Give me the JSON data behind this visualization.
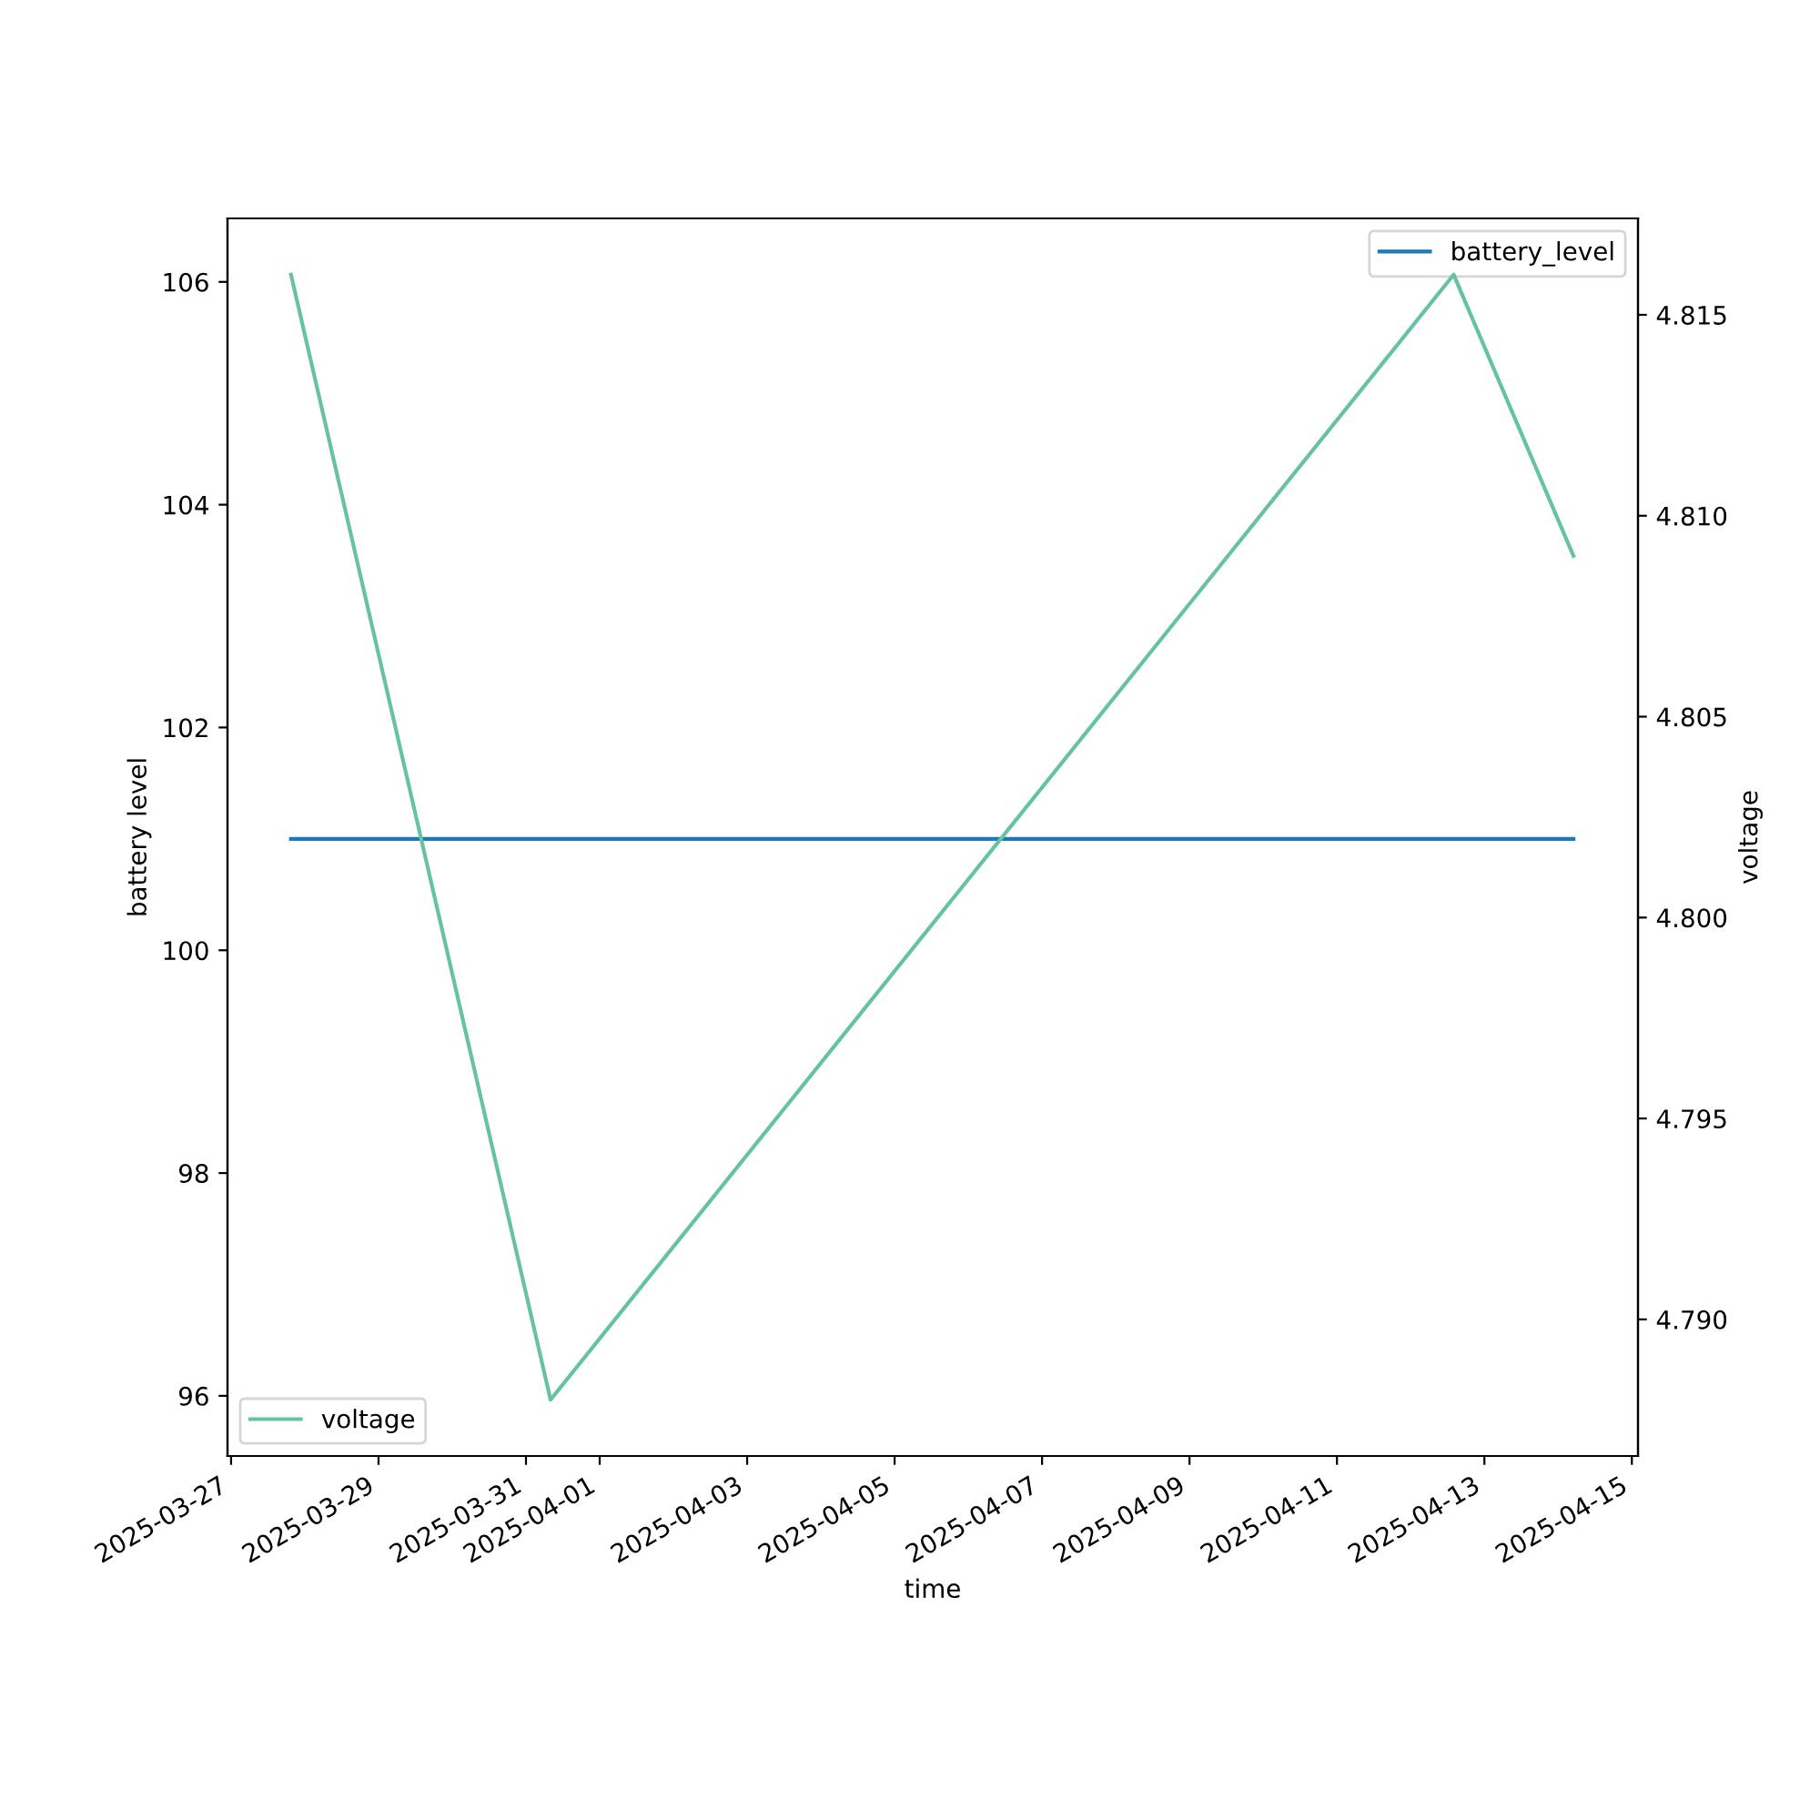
{
  "chart_data": {
    "type": "line",
    "xlabel": "time",
    "ylabel": "battery level",
    "y2label": "voltage",
    "x": [
      "2025-03-27T19:30",
      "2025-03-31T08:00",
      "2025-04-12T14:00",
      "2025-04-14T05:00"
    ],
    "series": [
      {
        "name": "battery_level",
        "color": "#1f77b4",
        "values": [
          101,
          101,
          101,
          101
        ]
      },
      {
        "name": "voltage",
        "color": "#66c2a5",
        "values": [
          4.816,
          4.788,
          4.816,
          4.809
        ],
        "axis": "y2"
      }
    ],
    "xlim": [
      "2025-03-26T22:50",
      "2025-04-15T02:00"
    ],
    "xticks": [
      {
        "value": "2025-03-27",
        "label": "2025-03-27"
      },
      {
        "value": "2025-03-29",
        "label": "2025-03-29"
      },
      {
        "value": "2025-03-31",
        "label": "2025-03-31"
      },
      {
        "value": "2025-04-01",
        "label": "2025-04-01"
      },
      {
        "value": "2025-04-03",
        "label": "2025-04-03"
      },
      {
        "value": "2025-04-05",
        "label": "2025-04-05"
      },
      {
        "value": "2025-04-07",
        "label": "2025-04-07"
      },
      {
        "value": "2025-04-09",
        "label": "2025-04-09"
      },
      {
        "value": "2025-04-11",
        "label": "2025-04-11"
      },
      {
        "value": "2025-04-13",
        "label": "2025-04-13"
      },
      {
        "value": "2025-04-15",
        "label": "2025-04-15"
      }
    ],
    "ylim": [
      95.46,
      106.57
    ],
    "yticks": [
      96,
      98,
      100,
      102,
      104,
      106
    ],
    "y2lim": [
      4.7866,
      4.8174
    ],
    "y2ticks": [
      {
        "value": 4.79,
        "label": "4.790"
      },
      4.795,
      {
        "value": 4.8,
        "label": "4.800"
      },
      4.805,
      {
        "value": 4.81,
        "label": "4.810"
      },
      4.815
    ],
    "legend": [
      "top right",
      "bottom left"
    ],
    "grid": false,
    "marker": "none",
    "line_style": "solid"
  }
}
